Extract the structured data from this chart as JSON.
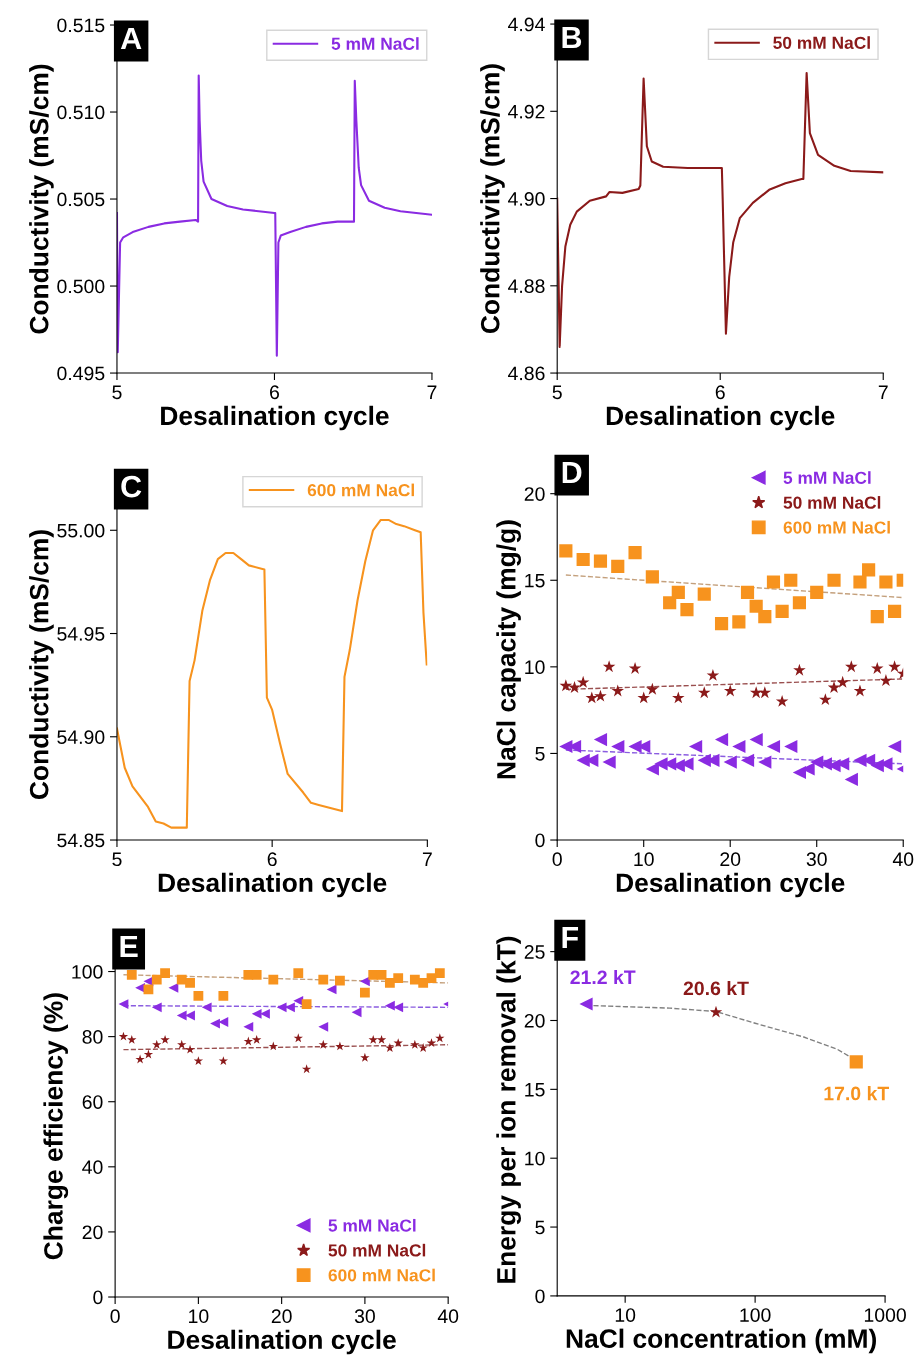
{
  "chart_data": [
    {
      "type": "line",
      "xlabel": "Desalination cycle",
      "ylabel": "Conductivity (mS/cm)",
      "annotations": [
        "A"
      ],
      "legend": "top right",
      "xlim": [
        5,
        7
      ],
      "ylim": [
        0.495,
        0.515
      ],
      "xticks": [
        5,
        6,
        7
      ],
      "yticks": [
        0.495,
        {
          "value": 0.5,
          "label": "0.500"
        },
        0.505,
        {
          "value": 0.51,
          "label": "0.510"
        },
        0.515
      ],
      "series": [
        {
          "name": "5 mM NaCl",
          "color": "#8a2be2",
          "x": [
            5.0,
            5.005,
            5.02,
            5.04,
            5.1,
            5.2,
            5.3,
            5.4,
            5.5,
            5.515,
            5.519,
            5.525,
            5.535,
            5.55,
            5.6,
            5.7,
            5.8,
            5.9,
            6.0,
            6.005,
            6.015,
            6.025,
            6.04,
            6.1,
            6.2,
            6.3,
            6.4,
            6.505,
            6.51,
            6.52,
            6.535,
            6.55,
            6.6,
            6.7,
            6.8,
            6.9,
            7.0
          ],
          "values": [
            0.5042,
            0.4962,
            0.5025,
            0.5028,
            0.5031,
            0.5034,
            0.5036,
            0.5037,
            0.5038,
            0.5037,
            0.5121,
            0.5095,
            0.5072,
            0.506,
            0.505,
            0.5046,
            0.5044,
            0.5043,
            0.5042,
            0.5042,
            0.496,
            0.5025,
            0.5029,
            0.5031,
            0.5034,
            0.5036,
            0.5037,
            0.5037,
            0.5118,
            0.5095,
            0.5068,
            0.5058,
            0.5049,
            0.5045,
            0.5043,
            0.5042,
            0.5041
          ]
        }
      ]
    },
    {
      "type": "line",
      "xlabel": "Desalination cycle",
      "ylabel": "Conductivity (mS/cm)",
      "annotations": [
        "B"
      ],
      "legend": "top right",
      "xlim": [
        5,
        7
      ],
      "ylim": [
        4.86,
        4.94
      ],
      "xticks": [
        5,
        6,
        7
      ],
      "yticks": [
        4.86,
        4.88,
        {
          "value": 4.9,
          "label": "4.90"
        },
        4.92,
        4.94
      ],
      "series": [
        {
          "name": "50 mM NaCl",
          "color": "#8b1a1a",
          "x": [
            5.0,
            5.015,
            5.03,
            5.05,
            5.08,
            5.12,
            5.2,
            5.3,
            5.32,
            5.4,
            5.5,
            5.51,
            5.53,
            5.55,
            5.58,
            5.65,
            5.8,
            6.01,
            6.015,
            6.035,
            6.055,
            6.08,
            6.12,
            6.2,
            6.3,
            6.4,
            6.5,
            6.51,
            6.53,
            6.55,
            6.6,
            6.7,
            6.8,
            7.0
          ],
          "values": [
            4.9,
            4.866,
            4.88,
            4.889,
            4.894,
            4.897,
            4.8995,
            4.9005,
            4.9015,
            4.9013,
            4.9022,
            4.903,
            4.9275,
            4.912,
            4.9085,
            4.9073,
            4.907,
            4.907,
            4.9,
            4.869,
            4.882,
            4.89,
            4.8955,
            4.899,
            4.902,
            4.9035,
            4.9045,
            4.9045,
            4.9288,
            4.915,
            4.91,
            4.9075,
            4.9063,
            4.906
          ]
        }
      ]
    },
    {
      "type": "line",
      "xlabel": "Desalination cycle",
      "ylabel": "Conductivity (mS/cm)",
      "annotations": [
        "C"
      ],
      "legend": "top right",
      "xlim": [
        5,
        7
      ],
      "ylim": [
        54.85,
        55.02
      ],
      "xticks": [
        5,
        6,
        7
      ],
      "yticks": [
        54.85,
        {
          "value": 54.9,
          "label": "54.90"
        },
        54.95,
        {
          "value": 55.0,
          "label": "55.00"
        }
      ],
      "series": [
        {
          "name": "600 mM NaCl",
          "color": "#f7931e",
          "x": [
            5.0,
            5.05,
            5.1,
            5.2,
            5.25,
            5.3,
            5.35,
            5.45,
            5.468,
            5.5,
            5.55,
            5.6,
            5.65,
            5.7,
            5.75,
            5.8,
            5.85,
            5.95,
            5.966,
            6.0,
            6.05,
            6.1,
            6.2,
            6.25,
            6.3,
            6.45,
            6.466,
            6.5,
            6.55,
            6.6,
            6.65,
            6.7,
            6.75,
            6.8,
            6.85,
            6.92,
            6.957,
            6.975,
            6.996
          ],
          "values": [
            54.904,
            54.885,
            54.876,
            54.866,
            54.859,
            54.858,
            54.856,
            54.856,
            54.927,
            54.937,
            54.961,
            54.976,
            54.986,
            54.989,
            54.989,
            54.986,
            54.983,
            54.981,
            54.919,
            54.913,
            54.897,
            54.882,
            54.873,
            54.868,
            54.867,
            54.864,
            54.929,
            54.942,
            54.966,
            54.985,
            55.0,
            55.005,
            55.005,
            55.003,
            55.002,
            55.0,
            54.999,
            54.96,
            54.935
          ]
        }
      ]
    },
    {
      "type": "scatter",
      "xlabel": "Desalination cycle",
      "ylabel": "NaCl capacity (mg/g)",
      "annotations": [
        "D"
      ],
      "legend": "top right",
      "xlim": [
        0,
        40
      ],
      "ylim": [
        0,
        22
      ],
      "xticks": [
        0,
        10,
        20,
        30,
        40
      ],
      "yticks": [
        0,
        5,
        10,
        15,
        20
      ],
      "series": [
        {
          "name": "5 mM NaCl",
          "color": "#8a2be2",
          "marker": "triangle",
          "x": [
            1,
            2,
            3,
            4,
            5,
            6,
            7,
            9,
            10,
            11,
            12,
            13,
            14,
            15,
            16,
            17,
            18,
            19,
            20,
            21,
            22,
            23,
            24,
            25,
            27,
            28,
            29,
            30,
            31,
            32,
            33,
            34,
            35,
            36,
            37,
            38,
            39,
            40
          ],
          "values": [
            5.4,
            5.4,
            4.6,
            4.6,
            5.8,
            4.5,
            5.4,
            5.4,
            5.4,
            4.1,
            4.4,
            4.4,
            4.3,
            4.4,
            5.4,
            4.6,
            4.6,
            5.8,
            4.5,
            5.4,
            4.6,
            5.8,
            4.5,
            5.4,
            5.4,
            3.9,
            4.1,
            4.5,
            4.4,
            4.3,
            4.4,
            3.5,
            4.6,
            4.6,
            4.3,
            4.4,
            5.4,
            4.1
          ]
        },
        {
          "name": "50 mM NaCl",
          "color": "#8b1a1a",
          "marker": "star",
          "x": [
            1,
            2,
            3,
            4,
            5,
            6,
            7,
            9,
            10,
            11,
            14,
            17,
            18,
            20,
            23,
            24,
            26,
            28,
            31,
            32,
            33,
            34,
            35,
            37,
            38,
            39,
            40
          ],
          "values": [
            8.9,
            8.8,
            9.1,
            8.2,
            8.3,
            10.0,
            8.6,
            9.9,
            8.2,
            8.7,
            8.2,
            8.5,
            9.5,
            8.6,
            8.5,
            8.5,
            8.0,
            9.8,
            8.1,
            8.8,
            9.1,
            10.0,
            8.6,
            9.9,
            9.2,
            10.0,
            9.6
          ]
        },
        {
          "name": "600 mM NaCl",
          "color": "#f7931e",
          "marker": "square",
          "x": [
            1,
            3,
            5,
            7,
            9,
            11,
            13,
            14,
            15,
            17,
            19,
            21,
            22,
            23,
            24,
            25,
            26,
            27,
            28,
            30,
            32,
            35,
            36,
            37,
            38,
            39,
            40
          ],
          "values": [
            16.7,
            16.2,
            16.1,
            15.8,
            16.6,
            15.2,
            13.7,
            14.3,
            13.3,
            14.2,
            12.5,
            12.6,
            14.3,
            13.5,
            12.9,
            14.9,
            13.2,
            15.0,
            13.7,
            14.3,
            15.0,
            14.9,
            15.6,
            12.9,
            14.9,
            13.2,
            15.0
          ]
        },
        {
          "type": "line",
          "line_style": "dashed",
          "color": "#8a5ce0",
          "x": [
            1,
            40
          ],
          "values": [
            5.2,
            4.4
          ]
        },
        {
          "type": "line",
          "line_style": "dashed",
          "color": "#9a4f4f",
          "x": [
            1,
            40
          ],
          "values": [
            8.7,
            9.3
          ]
        },
        {
          "type": "line",
          "line_style": "dashed",
          "color": "#c4a07c",
          "x": [
            1,
            40
          ],
          "values": [
            15.3,
            14.0
          ]
        }
      ]
    },
    {
      "type": "scatter",
      "xlabel": "Desalination cycle",
      "ylabel": "Charge efficiency (%)",
      "annotations": [
        "E"
      ],
      "legend": "bottom right",
      "xlim": [
        0,
        40
      ],
      "ylim": [
        0,
        105
      ],
      "xticks": [
        0,
        10,
        20,
        30,
        40
      ],
      "yticks": [
        0,
        20,
        40,
        60,
        80,
        100
      ],
      "series": [
        {
          "name": "5 mM NaCl",
          "color": "#8a2be2",
          "marker": "triangle",
          "x": [
            1,
            3,
            4,
            5,
            7,
            8,
            9,
            11,
            12,
            13,
            16,
            17,
            18,
            20,
            21,
            22,
            25,
            26,
            29,
            30,
            33,
            34,
            40
          ],
          "values": [
            90,
            95,
            97,
            89,
            95,
            86.5,
            86.5,
            89,
            84,
            84.5,
            83,
            87,
            87,
            89,
            89,
            91,
            83,
            94.5,
            87.5,
            97,
            89.5,
            89,
            90
          ]
        },
        {
          "name": "50 mM NaCl",
          "color": "#8b1a1a",
          "marker": "star",
          "x": [
            1,
            2,
            3,
            4,
            5,
            6,
            8,
            9,
            10,
            13,
            16,
            17,
            19,
            22,
            23,
            25,
            27,
            30,
            31,
            32,
            33,
            34,
            36,
            37,
            38,
            39
          ],
          "values": [
            80,
            79,
            73,
            74.5,
            77.5,
            79,
            77.5,
            76,
            72.5,
            72.5,
            78.5,
            79,
            77,
            79.5,
            70,
            77.5,
            77,
            73.5,
            79,
            79,
            76.5,
            78,
            77.5,
            76.5,
            78,
            79.5
          ]
        },
        {
          "name": "600 mM NaCl",
          "color": "#f7931e",
          "marker": "square",
          "x": [
            2,
            4,
            5,
            6,
            8,
            9,
            10,
            13,
            16,
            17,
            19,
            22,
            23,
            25,
            27,
            30,
            31,
            32,
            33,
            34,
            36,
            37,
            38,
            39
          ],
          "values": [
            99,
            94.5,
            97.5,
            99.5,
            97.5,
            96.5,
            92.5,
            92.5,
            99,
            99,
            97.5,
            99.5,
            90,
            97.5,
            97.2,
            93.5,
            99,
            99,
            96.5,
            98,
            97.5,
            96.5,
            98,
            99.5
          ]
        },
        {
          "type": "line",
          "line_style": "dashed",
          "color": "#8a5ce0",
          "x": [
            1,
            40
          ],
          "values": [
            89.5,
            89
          ]
        },
        {
          "type": "line",
          "line_style": "dashed",
          "color": "#9a4f4f",
          "x": [
            1,
            40
          ],
          "values": [
            76,
            77.5
          ]
        },
        {
          "type": "line",
          "line_style": "dashed",
          "color": "#c4a07c",
          "x": [
            1,
            40
          ],
          "values": [
            99,
            96.5
          ]
        }
      ]
    },
    {
      "type": "scatter",
      "xlabel": "NaCl concentration (mM)",
      "ylabel": "Energy per ion removal (kT)",
      "annotations": [
        "F"
      ],
      "log": "x",
      "xlim": [
        3,
        1000
      ],
      "ylim": [
        0,
        27
      ],
      "xticks": [
        10,
        100,
        1000
      ],
      "yticks": [
        0,
        5,
        10,
        15,
        20,
        25
      ],
      "series": [
        {
          "type": "line",
          "line_style": "dashed",
          "color": "#808080",
          "x": [
            5,
            10,
            22,
            50,
            100,
            237,
            430,
            600
          ],
          "values": [
            21.1,
            21.0,
            20.9,
            20.65,
            19.8,
            18.8,
            17.9,
            17.1
          ]
        },
        {
          "color": "#8a2be2",
          "marker": "triangle",
          "x": [
            5
          ],
          "values": [
            21.2
          ],
          "value_labels": [
            "21.2 kT"
          ]
        },
        {
          "color": "#8b1a1a",
          "marker": "star",
          "x": [
            50
          ],
          "values": [
            20.6
          ],
          "value_labels": [
            "20.6 kT"
          ]
        },
        {
          "color": "#f7931e",
          "marker": "square",
          "x": [
            600
          ],
          "values": [
            17.0
          ],
          "value_labels": [
            "17.0 kT"
          ]
        }
      ]
    }
  ]
}
